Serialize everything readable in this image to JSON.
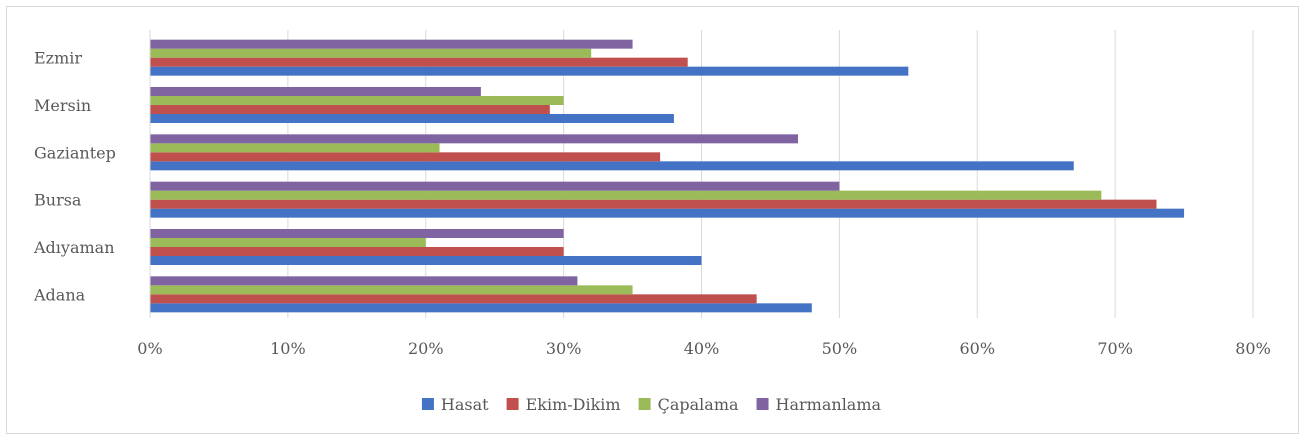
{
  "chart_data": {
    "type": "bar",
    "orientation": "horizontal",
    "categories": [
      "Adana",
      "Adıyaman",
      "Bursa",
      "Gaziantep",
      "Mersin",
      "Ezmir"
    ],
    "series": [
      {
        "name": "Hasat",
        "color": "#4472c4",
        "values": [
          48,
          40,
          75,
          67,
          38,
          55
        ]
      },
      {
        "name": "Ekim-Dikim",
        "color": "#c0504d",
        "values": [
          44,
          30,
          73,
          37,
          29,
          39
        ]
      },
      {
        "name": "Çapalama",
        "color": "#9bbb59",
        "values": [
          35,
          20,
          69,
          21,
          30,
          32
        ]
      },
      {
        "name": "Harmanlama",
        "color": "#8064a2",
        "values": [
          31,
          30,
          50,
          47,
          24,
          35
        ]
      }
    ],
    "xlim": [
      0,
      80
    ],
    "xticks": [
      "0%",
      "10%",
      "20%",
      "30%",
      "40%",
      "50%",
      "60%",
      "70%",
      "80%"
    ],
    "grid": true,
    "legend": "bottom"
  }
}
